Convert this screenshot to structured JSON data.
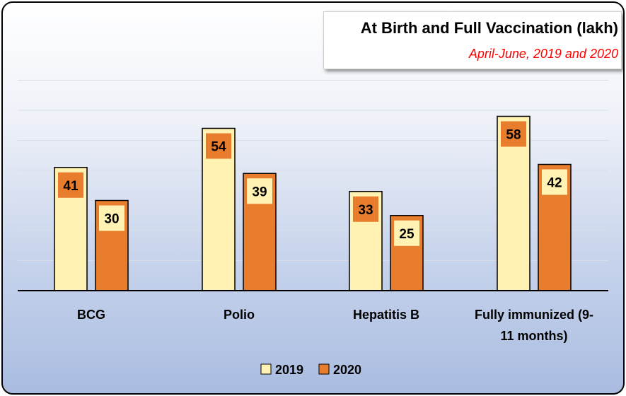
{
  "chart_data": {
    "type": "bar",
    "title": "At Birth and Full Vaccination (lakh)",
    "subtitle": "April-June, 2019 and 2020",
    "categories": [
      "BCG",
      "Polio",
      "Hepatitis B",
      "Fully immunized (9-11 months)"
    ],
    "category_lines": [
      [
        "BCG"
      ],
      [
        "Polio"
      ],
      [
        "Hepatitis B"
      ],
      [
        "Fully immunized (9-",
        "11 months)"
      ]
    ],
    "series": [
      {
        "name": "2019",
        "values": [
          41,
          54,
          33,
          58
        ],
        "color": "#fff2b3",
        "label_bg": "#e87d2e"
      },
      {
        "name": "2020",
        "values": [
          30,
          39,
          25,
          42
        ],
        "color": "#e87d2e",
        "label_bg": "#fff2b3"
      }
    ],
    "ylim": [
      0,
      70
    ],
    "grid": true,
    "legend": "bottom"
  }
}
